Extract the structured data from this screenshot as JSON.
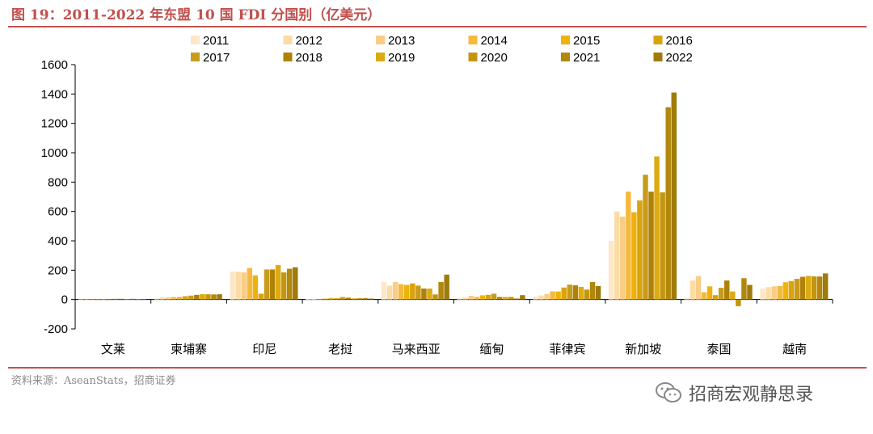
{
  "header": {
    "title": "图 19：2011-2022 年东盟 10 国 FDI 分国别（亿美元）"
  },
  "footer": {
    "source": "资料来源：AseanStats，招商证券",
    "watermark": "招商宏观静思录"
  },
  "colors": [
    "#fde7c8",
    "#fcdca6",
    "#f9cd85",
    "#f5b93e",
    "#efb20c",
    "#d9a30c",
    "#c99b1c",
    "#ae8209",
    "#dcaa12",
    "#c4960d",
    "#b1880c",
    "#a07a0a"
  ],
  "chart_data": {
    "type": "bar",
    "title": "",
    "xlabel": "",
    "ylabel": "",
    "ylim": [
      -200,
      1600
    ],
    "yticks": [
      -200,
      0,
      200,
      400,
      600,
      800,
      1000,
      1200,
      1400,
      1600
    ],
    "grid": false,
    "legend": "top",
    "categories": [
      "文莱",
      "柬埔寨",
      "印尼",
      "老挝",
      "马来西亚",
      "缅甸",
      "菲律宾",
      "新加坡",
      "泰国",
      "越南"
    ],
    "series": [
      {
        "name": "2011",
        "values": [
          1,
          9,
          190,
          3,
          120,
          12,
          20,
          400,
          12,
          75
        ]
      },
      {
        "name": "2012",
        "values": [
          1,
          15,
          190,
          3,
          95,
          14,
          28,
          600,
          130,
          85
        ]
      },
      {
        "name": "2013",
        "values": [
          1,
          15,
          185,
          5,
          120,
          26,
          38,
          565,
          160,
          90
        ]
      },
      {
        "name": "2014",
        "values": [
          1,
          17,
          215,
          7,
          105,
          18,
          56,
          735,
          50,
          92
        ]
      },
      {
        "name": "2015",
        "values": [
          2,
          17,
          165,
          11,
          100,
          29,
          55,
          595,
          90,
          118
        ]
      },
      {
        "name": "2016",
        "values": [
          1,
          23,
          40,
          9,
          110,
          32,
          82,
          675,
          30,
          126
        ]
      },
      {
        "name": "2017",
        "values": [
          5,
          27,
          205,
          17,
          95,
          40,
          102,
          850,
          80,
          141
        ]
      },
      {
        "name": "2018",
        "values": [
          5,
          32,
          205,
          13,
          75,
          18,
          97,
          735,
          130,
          155
        ]
      },
      {
        "name": "2019",
        "values": [
          4,
          37,
          235,
          8,
          75,
          18,
          87,
          975,
          55,
          161
        ]
      },
      {
        "name": "2020",
        "values": [
          5,
          36,
          185,
          10,
          35,
          18,
          68,
          730,
          -45,
          158
        ]
      },
      {
        "name": "2021",
        "values": [
          2,
          35,
          210,
          10,
          120,
          7,
          120,
          1310,
          145,
          157
        ]
      },
      {
        "name": "2022",
        "values": [
          4,
          36,
          220,
          7,
          170,
          30,
          92,
          1410,
          100,
          178
        ]
      }
    ]
  }
}
